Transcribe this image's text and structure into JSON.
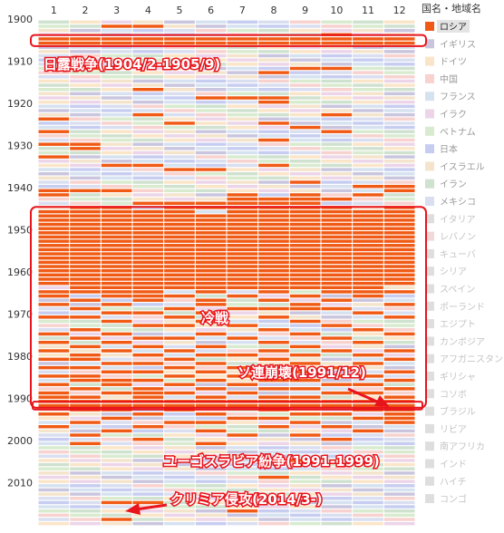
{
  "chart_data": {
    "type": "heatmap",
    "x_months": [
      "1",
      "2",
      "3",
      "4",
      "5",
      "6",
      "7",
      "8",
      "9",
      "10",
      "11",
      "12"
    ],
    "y_range": [
      1900,
      2019
    ],
    "y_ticks": [
      "1900",
      "1910",
      "1920",
      "1930",
      "1940",
      "1950",
      "1960",
      "1970",
      "1980",
      "1990",
      "2000",
      "2010"
    ],
    "legend_title": "国名・地域名",
    "legend": [
      {
        "name": "ロシア",
        "color": "#f05a14",
        "highlight": true
      },
      {
        "name": "イギリス",
        "color": "#c9c5de"
      },
      {
        "name": "ドイツ",
        "color": "#fbe5c8"
      },
      {
        "name": "中国",
        "color": "#f7d2cf"
      },
      {
        "name": "フランス",
        "color": "#d6e2f0"
      },
      {
        "name": "イラク",
        "color": "#ecd5e8"
      },
      {
        "name": "ベトナム",
        "color": "#d8ebcf"
      },
      {
        "name": "日本",
        "color": "#c7cdf0"
      },
      {
        "name": "イスラエル",
        "color": "#f4e4cc"
      },
      {
        "name": "イラン",
        "color": "#cfe1cf"
      },
      {
        "name": "メキシコ",
        "color": "#d9dff0"
      },
      {
        "name": "イタリア",
        "color": "#dedede"
      },
      {
        "name": "レバノン",
        "color": "#f2d9d9"
      },
      {
        "name": "キューバ",
        "color": "#dedede"
      },
      {
        "name": "シリア",
        "color": "#dedede"
      },
      {
        "name": "スペイン",
        "color": "#dedede"
      },
      {
        "name": "ポーランド",
        "color": "#dedede"
      },
      {
        "name": "エジプト",
        "color": "#dedede"
      },
      {
        "name": "カンボジア",
        "color": "#dedede"
      },
      {
        "name": "アフガニスタン",
        "color": "#dedede"
      },
      {
        "name": "ギリシャ",
        "color": "#dedede"
      },
      {
        "name": "コソボ",
        "color": "#dedede"
      },
      {
        "name": "ブラジル",
        "color": "#dedede"
      },
      {
        "name": "リビア",
        "color": "#dedede"
      },
      {
        "name": "南アフリカ",
        "color": "#dedede"
      },
      {
        "name": "インド",
        "color": "#dedede"
      },
      {
        "name": "ハイチ",
        "color": "#dedede"
      },
      {
        "name": "コンゴ",
        "color": "#dedede"
      }
    ],
    "russia_months_by_year": {
      "1901": [
        3,
        4
      ],
      "1903": [
        10
      ],
      "1904": [
        1,
        2,
        3,
        4,
        5,
        6,
        7,
        8,
        9,
        10,
        11,
        12
      ],
      "1905": [
        1,
        2,
        3,
        4,
        5,
        6,
        7,
        8,
        9,
        10,
        11,
        12
      ],
      "1911": [
        2,
        9,
        10
      ],
      "1912": [
        8
      ],
      "1916": [
        4
      ],
      "1918": [
        6,
        7,
        8
      ],
      "1919": [
        8
      ],
      "1922": [
        4,
        10
      ],
      "1923": [
        1
      ],
      "1924": [
        5,
        8
      ],
      "1925": [
        9
      ],
      "1926": [
        1,
        10
      ],
      "1928": [
        8
      ],
      "1929": [
        1,
        2
      ],
      "1930": [
        2
      ],
      "1932": [
        1
      ],
      "1934": [
        3,
        4,
        8
      ],
      "1935": [
        5,
        6
      ],
      "1938": [
        9
      ],
      "1939": [
        11,
        12
      ],
      "1940": [
        1,
        2,
        3,
        12
      ],
      "1941": [
        1,
        7,
        9,
        11
      ],
      "1942": [
        7,
        8,
        9,
        10
      ],
      "1943": [
        4,
        5,
        6,
        7,
        8,
        9
      ],
      "1944": [
        2,
        3,
        5,
        6,
        7,
        8,
        9,
        10,
        12
      ],
      "1945": [
        1,
        2,
        3,
        4,
        5,
        7,
        8,
        9,
        10,
        11,
        12
      ],
      "1946": [
        1,
        2,
        3,
        4,
        5,
        6,
        7,
        8,
        9,
        10,
        11,
        12
      ],
      "1947": [
        1,
        2,
        3,
        4,
        5,
        6,
        7,
        8,
        9,
        10,
        11,
        12
      ],
      "1948": [
        1,
        2,
        3,
        4,
        5,
        6,
        7,
        8,
        9,
        10,
        11,
        12
      ],
      "1949": [
        1,
        2,
        3,
        4,
        5,
        6,
        7,
        8,
        9,
        10,
        11,
        12
      ],
      "1950": [
        1,
        2,
        3,
        4,
        5,
        6,
        7,
        8,
        9,
        10,
        11,
        12
      ],
      "1951": [
        1,
        2,
        3,
        4,
        5,
        6,
        7,
        8,
        9,
        10,
        11,
        12
      ],
      "1952": [
        1,
        2,
        3,
        4,
        5,
        6,
        7,
        8,
        9,
        10,
        11,
        12
      ],
      "1953": [
        1,
        2,
        3,
        4,
        5,
        6,
        7,
        8,
        9,
        10,
        11,
        12
      ],
      "1954": [
        1,
        2,
        3,
        4,
        5,
        6,
        7,
        8,
        9,
        10,
        11,
        12
      ],
      "1955": [
        1,
        2,
        3,
        4,
        5,
        6,
        7,
        8,
        9,
        10,
        11,
        12
      ],
      "1956": [
        1,
        2,
        3,
        4,
        5,
        6,
        7,
        8,
        9,
        10,
        11,
        12
      ],
      "1957": [
        1,
        2,
        3,
        4,
        5,
        6,
        7,
        8,
        9,
        10,
        11,
        12
      ],
      "1958": [
        1,
        2,
        3,
        4,
        5,
        6,
        7,
        8,
        9,
        10,
        11,
        12
      ],
      "1959": [
        1,
        2,
        3,
        4,
        5,
        6,
        7,
        8,
        9,
        10,
        11,
        12
      ],
      "1960": [
        1,
        2,
        3,
        4,
        5,
        6,
        7,
        8,
        9,
        10,
        11,
        12
      ],
      "1961": [
        1,
        2,
        3,
        4,
        5,
        6,
        7,
        8,
        9,
        10,
        11,
        12
      ],
      "1962": [
        1,
        2,
        3,
        4,
        5,
        6,
        7,
        8,
        9,
        10,
        11,
        12
      ],
      "1963": [
        2,
        3,
        4,
        5,
        6,
        7,
        8,
        9,
        10,
        11
      ],
      "1964": [
        1,
        2,
        3,
        4,
        6,
        8,
        10,
        11,
        12
      ],
      "1965": [
        1,
        3,
        4,
        5,
        7,
        9,
        11
      ],
      "1966": [
        2,
        4,
        6,
        8,
        10
      ],
      "1967": [
        1,
        3,
        6,
        9,
        12
      ],
      "1968": [
        2,
        5,
        7,
        8,
        9,
        10
      ],
      "1969": [
        3,
        4,
        6,
        11
      ],
      "1970": [
        1,
        2,
        5,
        8,
        12
      ],
      "1971": [
        3,
        6,
        9
      ],
      "1972": [
        4,
        5,
        7,
        10
      ],
      "1973": [
        2,
        8,
        11
      ],
      "1974": [
        1,
        3,
        6,
        9,
        12
      ],
      "1975": [
        2,
        4,
        5,
        7,
        10
      ],
      "1976": [
        1,
        3,
        8,
        11
      ],
      "1977": [
        2,
        4,
        6,
        9
      ],
      "1978": [
        1,
        3,
        5,
        8,
        10,
        12
      ],
      "1979": [
        2,
        4,
        6,
        7,
        9,
        11
      ],
      "1980": [
        1,
        2,
        5,
        8,
        12
      ],
      "1981": [
        3,
        4,
        6,
        9,
        11
      ],
      "1982": [
        1,
        2,
        5,
        7,
        8,
        10
      ],
      "1983": [
        3,
        4,
        6,
        9,
        12
      ],
      "1984": [
        1,
        2,
        5,
        7,
        10,
        11
      ],
      "1985": [
        2,
        3,
        4,
        6,
        8,
        9,
        12
      ],
      "1986": [
        1,
        3,
        5,
        7,
        10,
        11
      ],
      "1987": [
        2,
        4,
        6,
        8,
        9,
        12
      ],
      "1988": [
        1,
        3,
        4,
        5,
        7,
        10,
        11
      ],
      "1989": [
        1,
        2,
        4,
        6,
        8,
        9,
        12
      ],
      "1990": [
        1,
        2,
        3,
        4,
        5,
        6,
        7,
        8,
        9,
        10,
        11,
        12
      ],
      "1991": [
        1,
        2,
        3,
        4,
        5,
        6,
        7,
        8,
        9,
        10,
        11,
        12
      ],
      "1992": [
        2,
        3,
        5,
        8,
        11,
        12
      ],
      "1993": [
        1,
        4,
        6,
        9,
        10,
        12
      ],
      "1994": [
        3,
        7,
        8,
        11,
        12
      ],
      "1995": [
        2,
        5,
        6,
        9,
        12
      ],
      "1996": [
        1,
        4,
        8,
        10
      ],
      "1997": [
        3,
        6,
        11
      ],
      "1998": [
        2,
        7,
        9
      ],
      "1999": [
        4,
        10
      ],
      "2000": [
        2,
        6
      ],
      "2004": [
        9
      ],
      "2008": [
        8
      ],
      "2014": [
        3,
        4
      ],
      "2016": [
        7
      ],
      "2018": [
        3
      ]
    },
    "annotations": [
      {
        "id": "russo-japanese-war",
        "text": "日露戦争(1904/2-1905/9)",
        "years": [
          1904,
          1905
        ]
      },
      {
        "id": "cold-war",
        "text": "冷戦",
        "years": [
          1945,
          1991
        ]
      },
      {
        "id": "soviet-collapse",
        "text": "ソ連崩壊(1991/12)",
        "years": [
          1991,
          1991
        ]
      },
      {
        "id": "yugoslav-wars",
        "text": "ユーゴスラビア紛争(1991-1999)"
      },
      {
        "id": "crimea",
        "text": "クリミア侵攻(2014/3-)"
      }
    ]
  },
  "colors": {
    "highlight": "#f05a14",
    "annotation": "#e8141c",
    "gridline": "#ffffff"
  }
}
